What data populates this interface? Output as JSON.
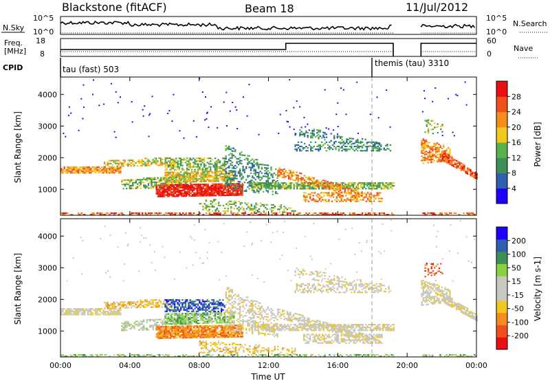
{
  "header": {
    "station": "Blackstone (fitACF)",
    "beam": "Beam 18",
    "date": "11/Jul/2012"
  },
  "sky_panel": {
    "left_label": "N.Sky",
    "right_label": "N.Search",
    "left_ticks": [
      "10^5",
      "10^0"
    ],
    "right_ticks": [
      "10^5",
      "10^0"
    ]
  },
  "freq_panel": {
    "left_label_1": "Freq.",
    "left_label_2": "[MHz]",
    "right_label": "Nave",
    "left_ticks": [
      "18",
      "8"
    ],
    "right_ticks": [
      "60",
      "0"
    ]
  },
  "cpid_panel": {
    "label": "CPID",
    "mode_1": "tau (fast) 503",
    "mode_2": "themis (tau) 3310"
  },
  "colors": {
    "power_scale": [
      "#1f00ff",
      "#2f5fb0",
      "#3d8f57",
      "#57b34a",
      "#f0c820",
      "#f58c1c",
      "#f0501c",
      "#e81010"
    ],
    "velocity_scale": [
      "#e81010",
      "#f0501c",
      "#f58c1c",
      "#f0c820",
      "#c8c8c0",
      "#c8c8c0",
      "#88d23c",
      "#3d8f57",
      "#2f5fb0",
      "#1f00ff"
    ]
  },
  "chart_data": [
    {
      "type": "heatmap",
      "panel": "power",
      "ylabel": "Slant Range [km]",
      "ylim": [
        180,
        4550
      ],
      "y_ticks": [
        "1000",
        "2000",
        "3000",
        "4000"
      ],
      "x_ticks": [
        "00:00",
        "04:00",
        "08:00",
        "12:00",
        "16:00",
        "20:00",
        "00:00"
      ],
      "colorbar_label": "Power [dB]",
      "colorbar_ticks": [
        "28",
        "24",
        "20",
        "16",
        "12",
        "8",
        "4"
      ],
      "data_gaps_ut": [
        [
          19.2,
          20.8
        ]
      ],
      "mode_change_ut": 18.0
    },
    {
      "type": "heatmap",
      "panel": "velocity",
      "ylabel": "Slant Range [km]",
      "xlabel": "Time UT",
      "ylim": [
        180,
        4550
      ],
      "y_ticks": [
        "1000",
        "2000",
        "3000",
        "4000"
      ],
      "x_ticks": [
        "00:00",
        "04:00",
        "08:00",
        "12:00",
        "16:00",
        "20:00",
        "00:00"
      ],
      "colorbar_label": "Velocity [m s-1]",
      "colorbar_ticks": [
        "200",
        "100",
        "50",
        "15",
        "-15",
        "-50",
        "-100",
        "-200"
      ]
    }
  ]
}
